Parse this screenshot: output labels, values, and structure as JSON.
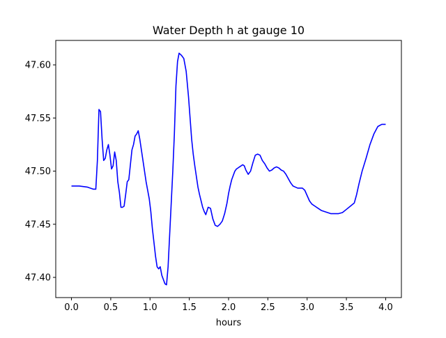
{
  "chart_data": {
    "type": "line",
    "title": "Water Depth h at gauge 10",
    "xlabel": "hours",
    "ylabel": "",
    "xlim": [
      -0.2,
      4.2
    ],
    "ylim": [
      47.381,
      47.623
    ],
    "xticks": [
      0.0,
      0.5,
      1.0,
      1.5,
      2.0,
      2.5,
      3.0,
      3.5,
      4.0
    ],
    "xtick_labels": [
      "0.0",
      "0.5",
      "1.0",
      "1.5",
      "2.0",
      "2.5",
      "3.0",
      "3.5",
      "4.0"
    ],
    "yticks": [
      47.4,
      47.45,
      47.5,
      47.55,
      47.6
    ],
    "ytick_labels": [
      "47.40",
      "47.45",
      "47.50",
      "47.55",
      "47.60"
    ],
    "grid": false,
    "series": [
      {
        "color": "#0000ff",
        "x": [
          0.0,
          0.1,
          0.2,
          0.28,
          0.31,
          0.33,
          0.35,
          0.37,
          0.39,
          0.41,
          0.43,
          0.45,
          0.47,
          0.49,
          0.51,
          0.53,
          0.55,
          0.57,
          0.59,
          0.61,
          0.63,
          0.65,
          0.67,
          0.69,
          0.71,
          0.73,
          0.75,
          0.77,
          0.79,
          0.81,
          0.83,
          0.85,
          0.87,
          0.89,
          0.91,
          0.93,
          0.95,
          0.97,
          0.99,
          1.01,
          1.03,
          1.05,
          1.07,
          1.09,
          1.11,
          1.13,
          1.15,
          1.17,
          1.19,
          1.21,
          1.23,
          1.25,
          1.27,
          1.29,
          1.31,
          1.33,
          1.35,
          1.37,
          1.4,
          1.43,
          1.46,
          1.49,
          1.51,
          1.53,
          1.55,
          1.57,
          1.59,
          1.61,
          1.63,
          1.65,
          1.67,
          1.69,
          1.71,
          1.74,
          1.77,
          1.8,
          1.83,
          1.86,
          1.89,
          1.92,
          1.95,
          1.98,
          2.0,
          2.02,
          2.04,
          2.06,
          2.08,
          2.1,
          2.12,
          2.14,
          2.16,
          2.18,
          2.2,
          2.22,
          2.25,
          2.28,
          2.31,
          2.34,
          2.37,
          2.4,
          2.43,
          2.46,
          2.49,
          2.52,
          2.55,
          2.58,
          2.61,
          2.64,
          2.67,
          2.7,
          2.73,
          2.76,
          2.79,
          2.82,
          2.85,
          2.88,
          2.91,
          2.94,
          2.97,
          3.0,
          3.03,
          3.06,
          3.1,
          3.14,
          3.18,
          3.22,
          3.26,
          3.3,
          3.35,
          3.4,
          3.45,
          3.5,
          3.55,
          3.6,
          3.63,
          3.66,
          3.7,
          3.75,
          3.8,
          3.85,
          3.9,
          3.95,
          4.0
        ],
        "y": [
          47.486,
          47.486,
          47.485,
          47.483,
          47.483,
          47.51,
          47.558,
          47.556,
          47.53,
          47.51,
          47.512,
          47.52,
          47.525,
          47.515,
          47.502,
          47.505,
          47.518,
          47.51,
          47.49,
          47.48,
          47.466,
          47.466,
          47.467,
          47.478,
          47.49,
          47.492,
          47.506,
          47.52,
          47.525,
          47.533,
          47.535,
          47.538,
          47.53,
          47.52,
          47.51,
          47.5,
          47.49,
          47.482,
          47.474,
          47.462,
          47.446,
          47.433,
          47.42,
          47.41,
          47.408,
          47.41,
          47.402,
          47.398,
          47.394,
          47.393,
          47.41,
          47.44,
          47.47,
          47.5,
          47.535,
          47.58,
          47.603,
          47.611,
          47.609,
          47.606,
          47.594,
          47.57,
          47.55,
          47.53,
          47.516,
          47.505,
          47.495,
          47.485,
          47.478,
          47.472,
          47.466,
          47.462,
          47.459,
          47.466,
          47.465,
          47.455,
          47.449,
          47.448,
          47.45,
          47.453,
          47.46,
          47.47,
          47.479,
          47.486,
          47.492,
          47.496,
          47.5,
          47.502,
          47.503,
          47.504,
          47.505,
          47.506,
          47.505,
          47.501,
          47.497,
          47.5,
          47.508,
          47.515,
          47.516,
          47.515,
          47.51,
          47.507,
          47.503,
          47.5,
          47.501,
          47.503,
          47.504,
          47.503,
          47.501,
          47.5,
          47.497,
          47.493,
          47.489,
          47.486,
          47.485,
          47.484,
          47.484,
          47.484,
          47.482,
          47.477,
          47.472,
          47.469,
          47.467,
          47.465,
          47.463,
          47.462,
          47.461,
          47.46,
          47.46,
          47.46,
          47.461,
          47.464,
          47.467,
          47.47,
          47.478,
          47.488,
          47.5,
          47.512,
          47.525,
          47.535,
          47.542,
          47.544,
          47.544
        ]
      }
    ]
  }
}
